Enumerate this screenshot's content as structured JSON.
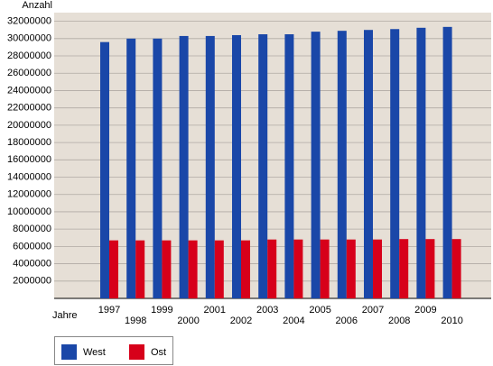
{
  "chart_data": {
    "type": "bar",
    "y_label": "Anzahl",
    "x_label": "Jahre",
    "categories": [
      "1997",
      "1998",
      "1999",
      "2000",
      "2001",
      "2002",
      "2003",
      "2004",
      "2005",
      "2006",
      "2007",
      "2008",
      "2009",
      "2010"
    ],
    "series": [
      {
        "name": "West",
        "color": "#1a47a8",
        "values": [
          29600000,
          30000000,
          30000000,
          30300000,
          30300000,
          30400000,
          30500000,
          30500000,
          30800000,
          30900000,
          31000000,
          31100000,
          31250000,
          31350000
        ]
      },
      {
        "name": "Ost",
        "color": "#d7001a",
        "values": [
          6700000,
          6700000,
          6700000,
          6700000,
          6700000,
          6700000,
          6800000,
          6800000,
          6800000,
          6800000,
          6800000,
          6850000,
          6850000,
          6850000
        ]
      }
    ],
    "ylim": [
      0,
      33000000
    ],
    "yticks": [
      2000000,
      4000000,
      6000000,
      8000000,
      10000000,
      12000000,
      14000000,
      16000000,
      18000000,
      20000000,
      22000000,
      24000000,
      26000000,
      28000000,
      30000000,
      32000000
    ],
    "grid": true,
    "legend": "bottom-left"
  }
}
